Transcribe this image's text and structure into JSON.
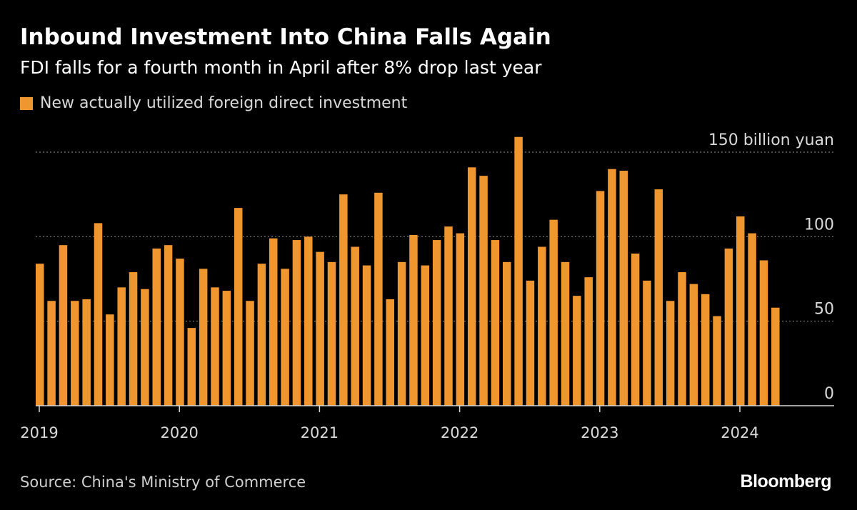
{
  "header": {
    "title": "Inbound Investment Into China Falls Again",
    "subtitle": "FDI falls for a fourth month in April after 8% drop last year"
  },
  "legend": {
    "label": "New actually utilized foreign direct investment"
  },
  "footer": {
    "source": "Source: China's Ministry of Commerce",
    "brand": "Bloomberg"
  },
  "colors": {
    "bar": "#f0962e",
    "background": "#000000",
    "grid": "#7a7a7a",
    "axis": "#d9d9d9"
  },
  "chart_data": {
    "type": "bar",
    "title": "Inbound Investment Into China Falls Again",
    "subtitle": "FDI falls for a fourth month in April after 8% drop last year",
    "ylabel": "billion yuan",
    "ylim": [
      0,
      160
    ],
    "yticks": [
      {
        "value": 0,
        "label": "0"
      },
      {
        "value": 50,
        "label": "50"
      },
      {
        "value": 100,
        "label": "100"
      },
      {
        "value": 150,
        "label": "150 billion yuan"
      }
    ],
    "xticks": [
      {
        "index": 0,
        "label": "2019"
      },
      {
        "index": 12,
        "label": "2020"
      },
      {
        "index": 24,
        "label": "2021"
      },
      {
        "index": 36,
        "label": "2022"
      },
      {
        "index": 48,
        "label": "2023"
      },
      {
        "index": 60,
        "label": "2024"
      }
    ],
    "total_slots": 69,
    "series": [
      {
        "name": "New actually utilized foreign direct investment",
        "values": [
          84,
          62,
          95,
          62,
          63,
          108,
          54,
          70,
          79,
          69,
          93,
          95,
          87,
          46,
          81,
          70,
          68,
          117,
          62,
          84,
          99,
          81,
          98,
          100,
          91,
          85,
          125,
          94,
          83,
          126,
          63,
          85,
          101,
          83,
          98,
          106,
          102,
          141,
          136,
          98,
          85,
          159,
          74,
          94,
          110,
          85,
          65,
          76,
          127,
          140,
          139,
          90,
          74,
          128,
          62,
          79,
          72,
          66,
          53,
          93,
          112,
          102,
          86,
          58
        ]
      }
    ]
  }
}
